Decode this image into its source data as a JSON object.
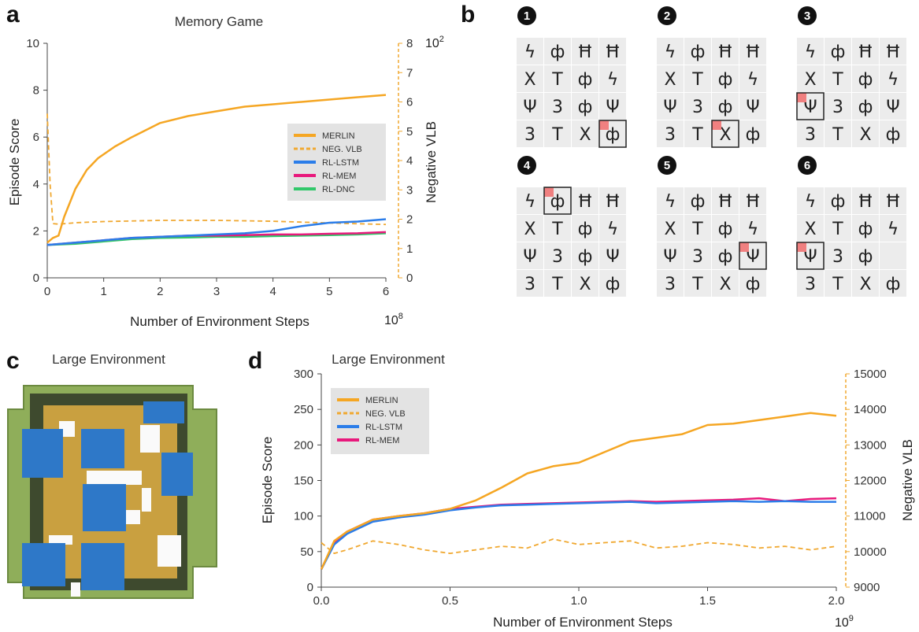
{
  "panel_labels": {
    "a": "a",
    "b": "b",
    "c": "c",
    "d": "d"
  },
  "colors": {
    "merlin": "#f5a623",
    "vlb": "#f0a830",
    "lstm": "#2b7de9",
    "mem": "#e8197c",
    "dnc": "#31c76a",
    "highlight": "#f08080"
  },
  "chart_data": [
    {
      "type": "line",
      "title": "Memory Game",
      "xlabel": "Number of Environment Steps",
      "x_exponent_label": "10",
      "x_exponent_power": "8",
      "ylabel": "Episode Score",
      "y2label": "Negative VLB",
      "y2_exponent_label": "10",
      "y2_exponent_power": "2",
      "xlim": [
        0,
        6
      ],
      "ylim": [
        0,
        10
      ],
      "y2lim": [
        0,
        8
      ],
      "xticks": [
        "0",
        "1",
        "2",
        "3",
        "4",
        "5",
        "6"
      ],
      "yticks": [
        "0",
        "2",
        "4",
        "6",
        "8",
        "10"
      ],
      "y2ticks": [
        "0",
        "1",
        "2",
        "3",
        "4",
        "5",
        "6",
        "7",
        "8"
      ],
      "legend": {
        "position": "right",
        "entries": [
          "MERLIN",
          "NEG. VLB",
          "RL-LSTM",
          "RL-MEM",
          "RL-DNC"
        ]
      },
      "series": [
        {
          "name": "MERLIN",
          "axis": "left",
          "style": "solid",
          "x": [
            0,
            0.1,
            0.2,
            0.3,
            0.5,
            0.7,
            0.9,
            1.2,
            1.5,
            2,
            2.5,
            3,
            3.5,
            4,
            4.5,
            5,
            5.5,
            6
          ],
          "y": [
            1.5,
            1.7,
            1.8,
            2.6,
            3.8,
            4.6,
            5.1,
            5.6,
            6.0,
            6.6,
            6.9,
            7.1,
            7.3,
            7.4,
            7.5,
            7.6,
            7.7,
            7.8
          ]
        },
        {
          "name": "NEG. VLB",
          "axis": "right",
          "style": "dashed",
          "x": [
            0,
            0.05,
            0.1,
            0.2,
            0.5,
            1,
            2,
            3,
            4,
            5,
            6
          ],
          "y": [
            5.6,
            3.2,
            1.85,
            1.83,
            1.88,
            1.92,
            1.96,
            1.96,
            1.93,
            1.87,
            1.82
          ]
        },
        {
          "name": "RL-LSTM",
          "axis": "left",
          "style": "solid",
          "x": [
            0,
            0.5,
            1,
            1.5,
            2,
            2.5,
            3,
            3.5,
            4,
            4.5,
            5,
            5.5,
            6
          ],
          "y": [
            1.4,
            1.5,
            1.6,
            1.7,
            1.75,
            1.8,
            1.85,
            1.9,
            2.0,
            2.2,
            2.35,
            2.4,
            2.5
          ]
        },
        {
          "name": "RL-MEM",
          "axis": "left",
          "style": "solid",
          "x": [
            0,
            0.5,
            1,
            1.5,
            2,
            2.5,
            3,
            3.5,
            4,
            4.5,
            5,
            5.5,
            6
          ],
          "y": [
            1.4,
            1.5,
            1.6,
            1.7,
            1.75,
            1.8,
            1.8,
            1.82,
            1.85,
            1.85,
            1.88,
            1.9,
            1.95
          ]
        },
        {
          "name": "RL-DNC",
          "axis": "left",
          "style": "solid",
          "x": [
            0,
            0.5,
            1,
            1.5,
            2,
            2.5,
            3,
            3.5,
            4,
            4.5,
            5,
            5.5,
            6
          ],
          "y": [
            1.4,
            1.45,
            1.55,
            1.65,
            1.7,
            1.72,
            1.75,
            1.75,
            1.78,
            1.8,
            1.82,
            1.85,
            1.9
          ]
        }
      ]
    },
    {
      "type": "line",
      "title": "Large Environment",
      "xlabel": "Number of Environment Steps",
      "x_exponent_label": "10",
      "x_exponent_power": "9",
      "ylabel": "Episode Score",
      "y2label": "Negative VLB",
      "xlim": [
        0,
        2
      ],
      "ylim": [
        0,
        300
      ],
      "y2lim": [
        9000,
        15000
      ],
      "xticks": [
        "0.0",
        "0.5",
        "1.0",
        "1.5",
        "2.0"
      ],
      "yticks": [
        "0",
        "50",
        "100",
        "150",
        "200",
        "250",
        "300"
      ],
      "y2ticks": [
        "9000",
        "10000",
        "11000",
        "12000",
        "13000",
        "14000",
        "15000"
      ],
      "legend": {
        "position": "top-left",
        "entries": [
          "MERLIN",
          "NEG. VLB",
          "RL-LSTM",
          "RL-MEM"
        ]
      },
      "series": [
        {
          "name": "MERLIN",
          "axis": "left",
          "style": "solid",
          "x": [
            0,
            0.05,
            0.1,
            0.2,
            0.3,
            0.4,
            0.5,
            0.6,
            0.7,
            0.8,
            0.9,
            1.0,
            1.1,
            1.2,
            1.3,
            1.4,
            1.5,
            1.6,
            1.7,
            1.8,
            1.9,
            2.0
          ],
          "y": [
            25,
            65,
            78,
            95,
            100,
            104,
            110,
            122,
            140,
            160,
            170,
            175,
            190,
            205,
            210,
            215,
            228,
            230,
            235,
            240,
            245,
            241
          ]
        },
        {
          "name": "NEG. VLB",
          "axis": "right",
          "style": "dashed",
          "x": [
            0,
            0.05,
            0.1,
            0.2,
            0.3,
            0.4,
            0.5,
            0.6,
            0.7,
            0.8,
            0.9,
            1.0,
            1.1,
            1.2,
            1.3,
            1.4,
            1.5,
            1.6,
            1.7,
            1.8,
            1.9,
            2.0
          ],
          "y": [
            10250,
            9950,
            10050,
            10300,
            10200,
            10050,
            9950,
            10050,
            10150,
            10100,
            10350,
            10200,
            10250,
            10300,
            10100,
            10150,
            10250,
            10200,
            10100,
            10150,
            10050,
            10150
          ]
        },
        {
          "name": "RL-LSTM",
          "axis": "left",
          "style": "solid",
          "x": [
            0,
            0.05,
            0.1,
            0.2,
            0.3,
            0.4,
            0.5,
            0.6,
            0.7,
            0.8,
            0.9,
            1.0,
            1.1,
            1.2,
            1.3,
            1.4,
            1.5,
            1.6,
            1.7,
            1.8,
            1.9,
            2.0
          ],
          "y": [
            25,
            60,
            75,
            92,
            98,
            102,
            108,
            112,
            115,
            116,
            117,
            118,
            119,
            120,
            118,
            119,
            120,
            121,
            120,
            121,
            120,
            120
          ]
        },
        {
          "name": "RL-MEM",
          "axis": "left",
          "style": "solid",
          "x": [
            0,
            0.05,
            0.1,
            0.2,
            0.3,
            0.4,
            0.5,
            0.6,
            0.7,
            0.8,
            0.9,
            1.0,
            1.1,
            1.2,
            1.3,
            1.4,
            1.5,
            1.6,
            1.7,
            1.8,
            1.9,
            2.0
          ],
          "y": [
            25,
            63,
            78,
            95,
            100,
            104,
            110,
            113,
            116,
            117,
            118,
            119,
            120,
            121,
            120,
            121,
            122,
            123,
            125,
            121,
            124,
            125
          ]
        }
      ]
    }
  ],
  "panel_b": {
    "steps": [
      "1",
      "2",
      "3",
      "4",
      "5",
      "6"
    ],
    "grid_glyphs": [
      [
        "ϟ",
        "ф",
        "Ħ",
        "Ħ"
      ],
      [
        "X",
        "T",
        "ф",
        "ϟ"
      ],
      [
        "Ψ",
        "3",
        "ф",
        "Ψ"
      ],
      [
        "3",
        "T",
        "X",
        "ф"
      ]
    ]
  },
  "panel_c": {
    "title": "Large Environment"
  }
}
